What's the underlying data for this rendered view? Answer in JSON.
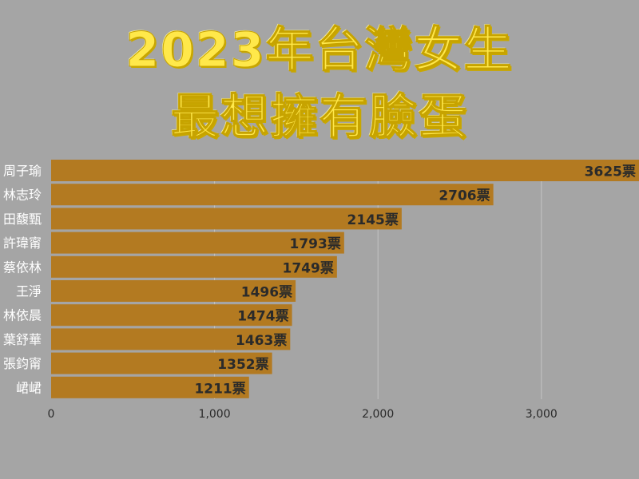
{
  "title": {
    "line1": "2023年台灣女生",
    "line2": "最想擁有臉蛋"
  },
  "colors": {
    "background": "#a5a5a5",
    "bar": "#b37a21",
    "bar_label": "#2a2a2a",
    "category_label": "#ffffff",
    "tick_label": "#2a2a2a",
    "grid": "#c4c4c4",
    "title": "#ffe84a"
  },
  "chart_data": {
    "type": "bar",
    "orientation": "horizontal",
    "categories": [
      "周子瑜",
      "林志玲",
      "田馥甄",
      "許瑋甯",
      "蔡依林",
      "王淨",
      "林依晨",
      "葉舒華",
      "張鈞甯",
      "峮峮"
    ],
    "values": [
      3625,
      2706,
      2145,
      1793,
      1749,
      1496,
      1474,
      1463,
      1352,
      1211
    ],
    "value_labels": [
      "3625票",
      "2706票",
      "2145票",
      "1793票",
      "1749票",
      "1496票",
      "1474票",
      "1463票",
      "1352票",
      "1211票"
    ],
    "xlim": [
      0,
      3600
    ],
    "xticks": [
      0,
      1000,
      2000,
      3000
    ],
    "xtick_labels": [
      "0",
      "1,000",
      "2,000",
      "3,000"
    ],
    "grid": true,
    "legend": "none"
  }
}
